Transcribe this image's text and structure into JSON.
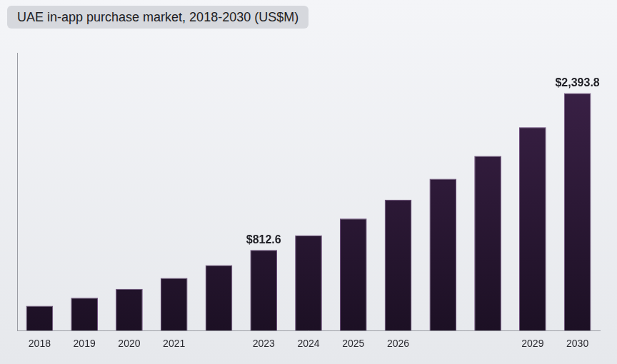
{
  "chart_data": {
    "type": "bar",
    "title": "UAE in-app purchase market, 2018-2030 (US$M)",
    "categories": [
      "2018",
      "2019",
      "2020",
      "2021",
      null,
      "2023",
      "2024",
      "2025",
      "2026",
      null,
      null,
      "2029",
      "2030"
    ],
    "values": [
      250,
      330,
      420,
      530,
      660,
      812.6,
      960,
      1130,
      1320,
      1530,
      1760,
      2050,
      2393.8
    ],
    "value_labels": [
      null,
      null,
      null,
      null,
      null,
      "$812.6",
      null,
      null,
      null,
      null,
      null,
      null,
      "$2,393.8"
    ],
    "data_labels": true,
    "color": "#3b2147",
    "ylim": [
      0,
      2800
    ],
    "tick_labels": "x",
    "grid": false
  }
}
